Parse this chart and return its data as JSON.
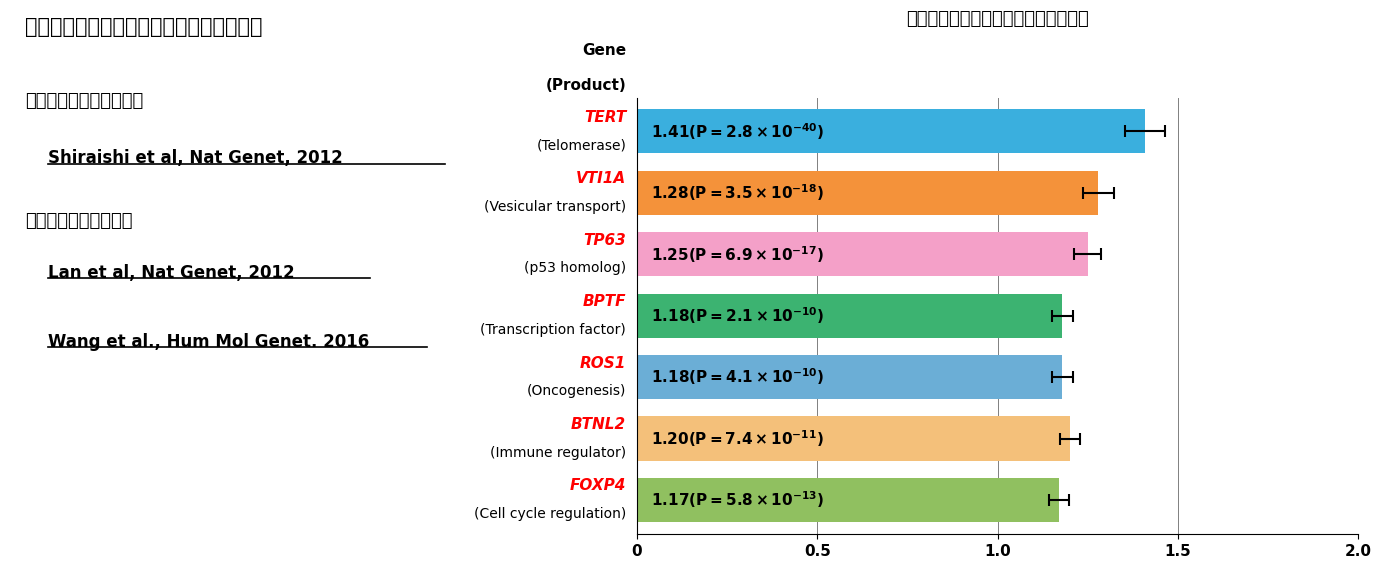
{
  "title": "肺腺がんリスクに関わる遺伝子多型の同定",
  "bullet1": "・国内での共同研究成果",
  "ref1": "Shiraishi et al, Nat Genet, 2012",
  "bullet2": "・国際共同研究の成果",
  "ref2": "Lan et al, Nat Genet, 2012",
  "ref3": "Wang et al., Hum Mol Genet. 2016",
  "chart_title": "危険アレル１つをもつときのオッズ比",
  "ylabel_line1": "Gene",
  "ylabel_line2": "(Product)",
  "genes": [
    "TERT",
    "VTI1A",
    "TP63",
    "BPTF",
    "ROS1",
    "BTNL2",
    "FOXP4"
  ],
  "products": [
    "(Telomerase)",
    "(Vesicular transport)",
    "(p53 homolog)",
    "(Transcription factor)",
    "(Oncogenesis)",
    "(Immune regulator)",
    "(Cell cycle regulation)"
  ],
  "values": [
    1.41,
    1.28,
    1.25,
    1.18,
    1.18,
    1.2,
    1.17
  ],
  "errors": [
    0.055,
    0.042,
    0.038,
    0.03,
    0.03,
    0.028,
    0.028
  ],
  "colors": [
    "#3AAFDE",
    "#F4923A",
    "#F4A0C8",
    "#3CB371",
    "#6BAED6",
    "#F4C07A",
    "#90C060"
  ],
  "bar_label_texts": [
    "1.41 (P=2.8 × 10",
    "1.28 (P=3.5 × 10",
    "1.25 (P=6.9 × 10",
    "1.18 (P=2.1 × 10",
    "1.18 (P=4.1 × 10",
    "1.20 (P=7.4 × 10",
    "1.17 (P=5.8 × 10"
  ],
  "bar_label_exponents": [
    "-40",
    "-18",
    "-17",
    "-10",
    "-10",
    "-11",
    "-13"
  ],
  "xlim": [
    0,
    2.0
  ],
  "xticks": [
    0,
    0.5,
    1.0,
    1.5,
    2.0
  ],
  "xtick_labels": [
    "0",
    "0.5",
    "1.0",
    "1.5",
    "2.0"
  ]
}
